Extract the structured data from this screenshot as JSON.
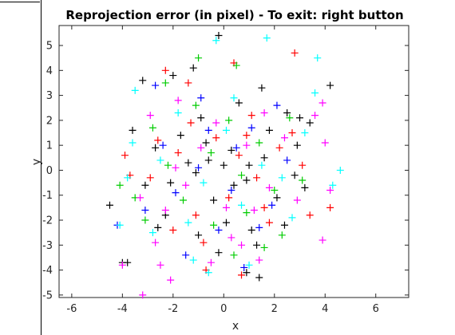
{
  "chart_data": {
    "type": "scatter",
    "title": "Reprojection error (in pixel) - To exit: right button",
    "xlabel": "x",
    "ylabel": "y",
    "xlim": [
      -6.5,
      7.3
    ],
    "ylim": [
      -5.1,
      5.8
    ],
    "xticks": [
      -6,
      -4,
      -2,
      0,
      2,
      4,
      6
    ],
    "yticks": [
      -5,
      -4,
      -3,
      -2,
      -1,
      0,
      1,
      2,
      3,
      4,
      5
    ],
    "marker": "plus",
    "grid": false,
    "legend": "none",
    "series": [
      {
        "color": "#000000",
        "points": [
          [
            -0.2,
            5.4
          ],
          [
            -1.2,
            4.1
          ],
          [
            -2.0,
            3.8
          ],
          [
            1.5,
            3.3
          ],
          [
            4.2,
            3.4
          ],
          [
            -3.2,
            3.6
          ],
          [
            -3.6,
            1.6
          ],
          [
            -4.5,
            -1.4
          ],
          [
            -4.0,
            -3.7
          ],
          [
            -3.8,
            -3.7
          ],
          [
            1.4,
            -4.3
          ],
          [
            0.9,
            -4.1
          ],
          [
            2.5,
            2.3
          ],
          [
            3.0,
            2.1
          ],
          [
            3.4,
            1.9
          ],
          [
            2.8,
            -0.2
          ],
          [
            3.2,
            -0.7
          ],
          [
            -2.1,
            -0.5
          ],
          [
            -1.4,
            0.3
          ],
          [
            -0.7,
            1.1
          ],
          [
            0.3,
            0.8
          ],
          [
            0.9,
            -0.4
          ],
          [
            1.6,
            0.5
          ],
          [
            -0.4,
            -1.2
          ],
          [
            0.1,
            -2.1
          ],
          [
            1.1,
            -2.4
          ],
          [
            -1.0,
            -2.6
          ],
          [
            -2.3,
            -1.8
          ],
          [
            2.1,
            -1.1
          ],
          [
            1.8,
            1.6
          ],
          [
            -0.9,
            2.1
          ],
          [
            0.6,
            2.7
          ],
          [
            -1.7,
            1.4
          ],
          [
            -2.7,
            0.9
          ],
          [
            -3.1,
            -0.6
          ],
          [
            -2.6,
            -2.3
          ],
          [
            -0.2,
            -3.3
          ],
          [
            1.3,
            -3.0
          ],
          [
            2.4,
            -2.2
          ],
          [
            2.9,
            1.0
          ],
          [
            0.0,
            0.2
          ],
          [
            0.4,
            -0.6
          ],
          [
            -0.6,
            0.4
          ],
          [
            -1.1,
            -0.1
          ],
          [
            1.0,
            0.2
          ]
        ]
      },
      {
        "color": "#ff0000",
        "points": [
          [
            2.8,
            4.7
          ],
          [
            0.4,
            4.3
          ],
          [
            -1.4,
            3.5
          ],
          [
            -2.3,
            4.0
          ],
          [
            -3.9,
            0.6
          ],
          [
            -3.7,
            -0.2
          ],
          [
            4.2,
            -1.5
          ],
          [
            3.4,
            -1.8
          ],
          [
            1.8,
            -2.1
          ],
          [
            -0.7,
            -4.0
          ],
          [
            0.7,
            -4.2
          ],
          [
            2.2,
            0.9
          ],
          [
            2.7,
            1.5
          ],
          [
            -1.3,
            1.9
          ],
          [
            -2.6,
            1.2
          ],
          [
            -2.9,
            -0.3
          ],
          [
            -2.0,
            -2.4
          ],
          [
            -1.1,
            -1.8
          ],
          [
            0.2,
            -1.1
          ],
          [
            1.3,
            -0.3
          ],
          [
            0.6,
            0.6
          ],
          [
            -0.3,
            1.3
          ],
          [
            1.1,
            2.2
          ],
          [
            -0.8,
            -2.9
          ],
          [
            1.6,
            -1.5
          ],
          [
            3.1,
            0.2
          ],
          [
            -1.8,
            0.7
          ],
          [
            0.9,
            1.4
          ]
        ]
      },
      {
        "color": "#00cc00",
        "points": [
          [
            -1.0,
            4.5
          ],
          [
            0.5,
            4.2
          ],
          [
            -2.3,
            3.5
          ],
          [
            2.6,
            2.1
          ],
          [
            -4.1,
            -0.6
          ],
          [
            -3.5,
            -1.1
          ],
          [
            -3.1,
            -2.0
          ],
          [
            2.3,
            -2.6
          ],
          [
            1.6,
            -3.1
          ],
          [
            0.4,
            -3.4
          ],
          [
            -1.6,
            -1.2
          ],
          [
            -0.5,
            0.7
          ],
          [
            0.7,
            -0.2
          ],
          [
            1.4,
            1.1
          ],
          [
            -1.1,
            2.6
          ],
          [
            0.2,
            2.0
          ],
          [
            -2.2,
            0.2
          ],
          [
            2.0,
            -0.8
          ],
          [
            -0.4,
            -2.2
          ],
          [
            0.9,
            -1.7
          ],
          [
            3.1,
            -0.4
          ],
          [
            -2.8,
            1.7
          ]
        ]
      },
      {
        "color": "#0000ff",
        "points": [
          [
            -4.2,
            -2.2
          ],
          [
            -3.1,
            -1.6
          ],
          [
            -2.7,
            3.4
          ],
          [
            -1.5,
            -3.4
          ],
          [
            0.8,
            -3.9
          ],
          [
            2.1,
            2.6
          ],
          [
            1.1,
            1.7
          ],
          [
            -0.6,
            1.6
          ],
          [
            -1.9,
            -0.9
          ],
          [
            0.3,
            -0.8
          ],
          [
            1.9,
            -1.4
          ],
          [
            -1.0,
            0.1
          ],
          [
            0.5,
            0.9
          ],
          [
            -0.2,
            -2.4
          ],
          [
            2.5,
            0.4
          ],
          [
            -2.4,
            1.0
          ],
          [
            1.4,
            -2.3
          ],
          [
            -0.9,
            2.9
          ]
        ]
      },
      {
        "color": "#00ffff",
        "points": [
          [
            -0.3,
            5.2
          ],
          [
            1.7,
            5.3
          ],
          [
            3.7,
            4.5
          ],
          [
            3.6,
            3.1
          ],
          [
            -3.5,
            3.2
          ],
          [
            -3.8,
            -0.3
          ],
          [
            -4.1,
            -2.2
          ],
          [
            -3.6,
            1.1
          ],
          [
            4.6,
            0.0
          ],
          [
            4.3,
            -0.6
          ],
          [
            1.0,
            -3.8
          ],
          [
            -0.6,
            -4.1
          ],
          [
            -1.2,
            -3.6
          ],
          [
            2.7,
            -1.9
          ],
          [
            -2.8,
            -2.5
          ],
          [
            2.3,
            -0.3
          ],
          [
            -1.8,
            2.3
          ],
          [
            0.4,
            2.9
          ],
          [
            1.5,
            0.2
          ],
          [
            -0.8,
            -0.5
          ],
          [
            0.7,
            -1.4
          ],
          [
            -1.4,
            -2.1
          ],
          [
            3.2,
            1.5
          ],
          [
            -2.5,
            0.4
          ],
          [
            0.1,
            1.6
          ]
        ]
      },
      {
        "color": "#ff00ff",
        "points": [
          [
            -3.2,
            -5.0
          ],
          [
            -4.0,
            -3.8
          ],
          [
            -2.1,
            -4.4
          ],
          [
            -2.5,
            -3.8
          ],
          [
            -0.5,
            -3.7
          ],
          [
            1.4,
            -3.6
          ],
          [
            0.7,
            -3.0
          ],
          [
            3.6,
            2.2
          ],
          [
            3.9,
            -2.8
          ],
          [
            4.2,
            -0.8
          ],
          [
            4.0,
            1.1
          ],
          [
            3.9,
            2.7
          ],
          [
            -1.8,
            2.8
          ],
          [
            -2.9,
            2.2
          ],
          [
            -3.3,
            -1.1
          ],
          [
            -2.3,
            -1.6
          ],
          [
            -1.5,
            -0.6
          ],
          [
            1.2,
            -1.6
          ],
          [
            2.4,
            1.3
          ],
          [
            -0.3,
            1.9
          ],
          [
            0.9,
            1.0
          ],
          [
            1.8,
            -0.7
          ],
          [
            -0.9,
            0.9
          ],
          [
            0.1,
            -1.5
          ],
          [
            -1.9,
            0.1
          ],
          [
            2.9,
            -1.2
          ],
          [
            -2.7,
            -2.9
          ],
          [
            1.6,
            2.3
          ],
          [
            0.3,
            -2.7
          ]
        ]
      }
    ]
  }
}
